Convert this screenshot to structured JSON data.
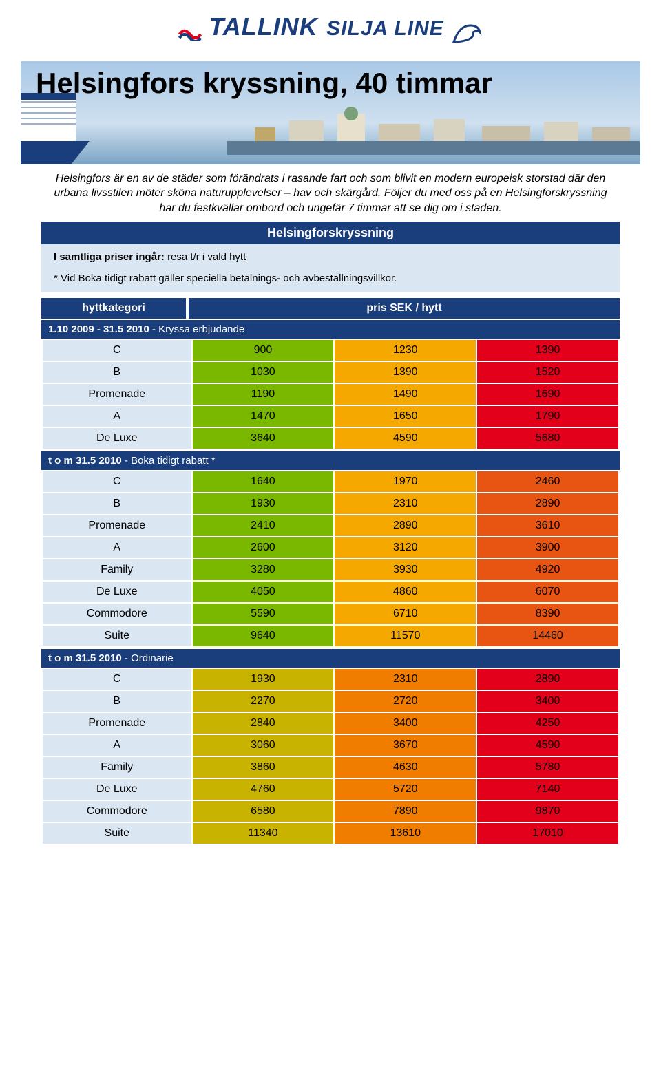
{
  "logo": {
    "tallink": "TALLINK",
    "silja": "SILJA LINE"
  },
  "hero": {
    "title": "Helsingfors kryssning, 40 timmar"
  },
  "intro": "Helsingfors är en av de städer som förändrats i rasande fart och som blivit en modern europeisk storstad där den urbana livsstilen möter sköna naturupplevelser – hav och skärgård. Följer du med oss på en Helsingforskryssning har du festkvällar ombord och ungefär 7 timmar att se dig om i staden.",
  "cruise_name": "Helsingforskryssning",
  "included": {
    "label": "I samtliga priser ingår:",
    "text": "resa t/r i vald hytt"
  },
  "note": "* Vid Boka tidigt rabatt gäller speciella betalnings- och avbeställningsvillkor.",
  "headers": {
    "category": "hyttkategori",
    "price": "pris SEK / hytt"
  },
  "palette": {
    "navy": "#1a3d7c",
    "lightblue": "#dbe6f3",
    "green": "#7ab800",
    "olive": "#c8b400",
    "yellow": "#f5a800",
    "orange": "#f07d00",
    "orangered": "#e85412",
    "red": "#e2001a"
  },
  "sections": [
    {
      "prefix": "1.10 2009 - 31.5 2010",
      "suffix": " - Kryssa erbjudande",
      "rows": [
        {
          "cat": "C",
          "p": [
            {
              "v": "900",
              "c": "g"
            },
            {
              "v": "1230",
              "c": "y"
            },
            {
              "v": "1390",
              "c": "r"
            }
          ]
        },
        {
          "cat": "B",
          "p": [
            {
              "v": "1030",
              "c": "g"
            },
            {
              "v": "1390",
              "c": "y"
            },
            {
              "v": "1520",
              "c": "r"
            }
          ]
        },
        {
          "cat": "Promenade",
          "p": [
            {
              "v": "1190",
              "c": "g"
            },
            {
              "v": "1490",
              "c": "y"
            },
            {
              "v": "1690",
              "c": "r"
            }
          ]
        },
        {
          "cat": "A",
          "p": [
            {
              "v": "1470",
              "c": "g"
            },
            {
              "v": "1650",
              "c": "y"
            },
            {
              "v": "1790",
              "c": "r"
            }
          ]
        },
        {
          "cat": "De Luxe",
          "p": [
            {
              "v": "3640",
              "c": "g"
            },
            {
              "v": "4590",
              "c": "y"
            },
            {
              "v": "5680",
              "c": "r"
            }
          ]
        }
      ]
    },
    {
      "prefix": "t o m 31.5 2010",
      "suffix": " - Boka tidigt rabatt *",
      "rows": [
        {
          "cat": "C",
          "p": [
            {
              "v": "1640",
              "c": "g"
            },
            {
              "v": "1970",
              "c": "y"
            },
            {
              "v": "2460",
              "c": "or"
            }
          ]
        },
        {
          "cat": "B",
          "p": [
            {
              "v": "1930",
              "c": "g"
            },
            {
              "v": "2310",
              "c": "y"
            },
            {
              "v": "2890",
              "c": "or"
            }
          ]
        },
        {
          "cat": "Promenade",
          "p": [
            {
              "v": "2410",
              "c": "g"
            },
            {
              "v": "2890",
              "c": "y"
            },
            {
              "v": "3610",
              "c": "or"
            }
          ]
        },
        {
          "cat": "A",
          "p": [
            {
              "v": "2600",
              "c": "g"
            },
            {
              "v": "3120",
              "c": "y"
            },
            {
              "v": "3900",
              "c": "or"
            }
          ]
        },
        {
          "cat": "Family",
          "p": [
            {
              "v": "3280",
              "c": "g"
            },
            {
              "v": "3930",
              "c": "y"
            },
            {
              "v": "4920",
              "c": "or"
            }
          ]
        },
        {
          "cat": "De Luxe",
          "p": [
            {
              "v": "4050",
              "c": "g"
            },
            {
              "v": "4860",
              "c": "y"
            },
            {
              "v": "6070",
              "c": "or"
            }
          ]
        },
        {
          "cat": "Commodore",
          "p": [
            {
              "v": "5590",
              "c": "g"
            },
            {
              "v": "6710",
              "c": "y"
            },
            {
              "v": "8390",
              "c": "or"
            }
          ]
        },
        {
          "cat": "Suite",
          "p": [
            {
              "v": "9640",
              "c": "g"
            },
            {
              "v": "11570",
              "c": "y"
            },
            {
              "v": "14460",
              "c": "or"
            }
          ]
        }
      ]
    },
    {
      "prefix": "t o m 31.5 2010",
      "suffix": " - Ordinarie",
      "rows": [
        {
          "cat": "C",
          "p": [
            {
              "v": "1930",
              "c": "og"
            },
            {
              "v": "2310",
              "c": "o"
            },
            {
              "v": "2890",
              "c": "r"
            }
          ]
        },
        {
          "cat": "B",
          "p": [
            {
              "v": "2270",
              "c": "og"
            },
            {
              "v": "2720",
              "c": "o"
            },
            {
              "v": "3400",
              "c": "r"
            }
          ]
        },
        {
          "cat": "Promenade",
          "p": [
            {
              "v": "2840",
              "c": "og"
            },
            {
              "v": "3400",
              "c": "o"
            },
            {
              "v": "4250",
              "c": "r"
            }
          ]
        },
        {
          "cat": "A",
          "p": [
            {
              "v": "3060",
              "c": "og"
            },
            {
              "v": "3670",
              "c": "o"
            },
            {
              "v": "4590",
              "c": "r"
            }
          ]
        },
        {
          "cat": "Family",
          "p": [
            {
              "v": "3860",
              "c": "og"
            },
            {
              "v": "4630",
              "c": "o"
            },
            {
              "v": "5780",
              "c": "r"
            }
          ]
        },
        {
          "cat": "De Luxe",
          "p": [
            {
              "v": "4760",
              "c": "og"
            },
            {
              "v": "5720",
              "c": "o"
            },
            {
              "v": "7140",
              "c": "r"
            }
          ]
        },
        {
          "cat": "Commodore",
          "p": [
            {
              "v": "6580",
              "c": "og"
            },
            {
              "v": "7890",
              "c": "o"
            },
            {
              "v": "9870",
              "c": "r"
            }
          ]
        },
        {
          "cat": "Suite",
          "p": [
            {
              "v": "11340",
              "c": "og"
            },
            {
              "v": "13610",
              "c": "o"
            },
            {
              "v": "17010",
              "c": "r"
            }
          ]
        }
      ]
    }
  ]
}
